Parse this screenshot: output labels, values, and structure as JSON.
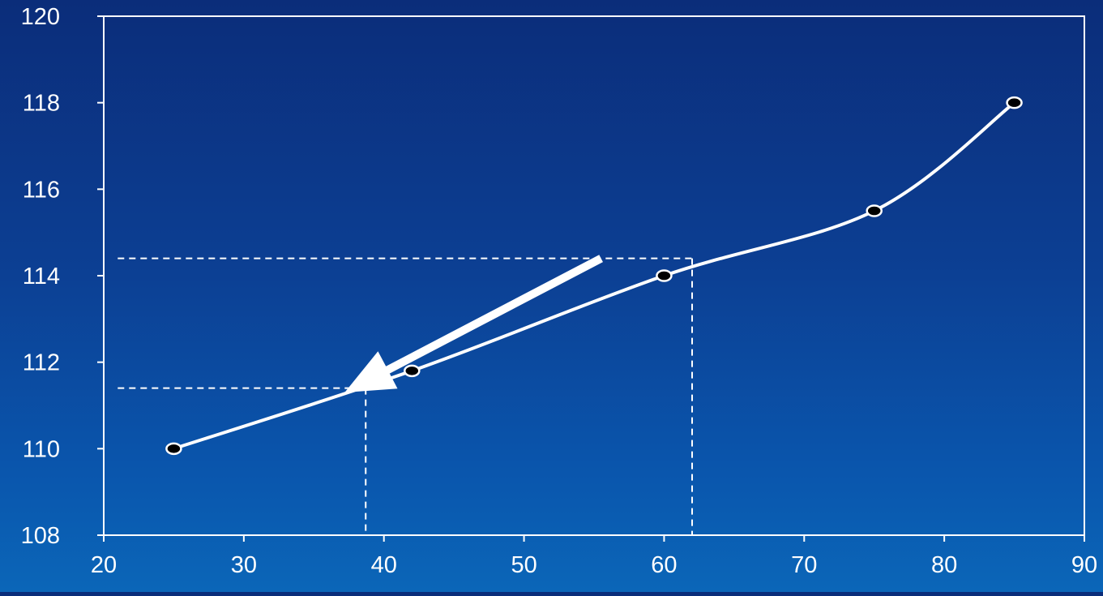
{
  "chart_data": {
    "type": "line",
    "title": "",
    "xlabel": "",
    "ylabel": "",
    "xlim": [
      20,
      90
    ],
    "ylim": [
      108,
      120
    ],
    "x_ticks": [
      20,
      30,
      40,
      50,
      60,
      70,
      80,
      90
    ],
    "y_ticks": [
      108,
      110,
      112,
      114,
      116,
      118,
      120
    ],
    "grid": false,
    "legend": "none",
    "series": [
      {
        "x": [
          25,
          42,
          60,
          75,
          85
        ],
        "y": [
          110,
          111.8,
          114,
          115.5,
          118
        ]
      }
    ],
    "annotations": {
      "guide_lines": [
        {
          "x": 62,
          "y": 114.4
        },
        {
          "x": 38.7,
          "y": 111.4
        }
      ],
      "arrow": {
        "from": {
          "x": 55.5,
          "y": 114.4
        },
        "to": {
          "x": 37.2,
          "y": 111.3
        }
      }
    },
    "colors": {
      "line": "#ffffff",
      "marker_fill": "#000000",
      "axis": "#ffffff"
    }
  }
}
